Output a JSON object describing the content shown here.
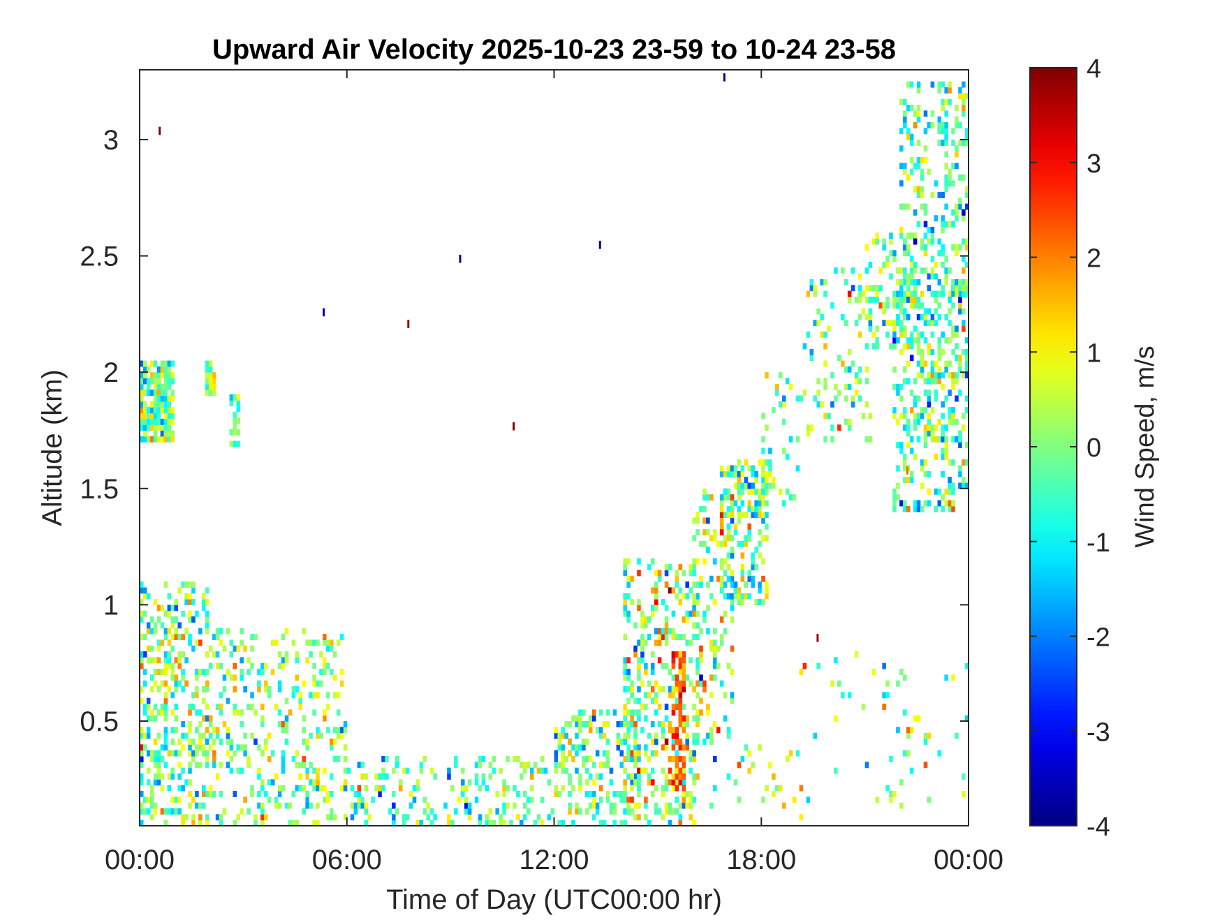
{
  "chart_data": {
    "type": "heatmap",
    "title": "Upward Air Velocity 2025-10-23 23-59 to 10-24 23-58",
    "xlabel": "Time of Day (UTC00:00 hr)",
    "ylabel": "Altitude (km)",
    "xlim_hours": [
      0,
      24
    ],
    "ylim_km": [
      0.05,
      3.3
    ],
    "x_ticks": [
      {
        "hour": 0,
        "label": "00:00"
      },
      {
        "hour": 6,
        "label": "06:00"
      },
      {
        "hour": 12,
        "label": "12:00"
      },
      {
        "hour": 18,
        "label": "18:00"
      },
      {
        "hour": 24,
        "label": "00:00"
      }
    ],
    "y_ticks": [
      {
        "value": 0.5,
        "label": "0.5"
      },
      {
        "value": 1.0,
        "label": "1"
      },
      {
        "value": 1.5,
        "label": "1.5"
      },
      {
        "value": 2.0,
        "label": "2"
      },
      {
        "value": 2.5,
        "label": "2.5"
      },
      {
        "value": 3.0,
        "label": "3"
      }
    ],
    "grid": false,
    "colorbar": {
      "label": "Wind Speed, m/s",
      "colormap": "jet",
      "clim": [
        -4,
        4
      ],
      "ticks": [
        {
          "value": 4,
          "label": "4"
        },
        {
          "value": 3,
          "label": "3"
        },
        {
          "value": 2,
          "label": "2"
        },
        {
          "value": 1,
          "label": "1"
        },
        {
          "value": 0,
          "label": "0"
        },
        {
          "value": -1,
          "label": "-1"
        },
        {
          "value": -2,
          "label": "-2"
        },
        {
          "value": -3,
          "label": "-3"
        },
        {
          "value": -4,
          "label": "-4"
        }
      ]
    },
    "regions": [
      {
        "t": [
          0.0,
          1.0
        ],
        "alt": [
          1.7,
          2.05
        ],
        "mean": 0.0,
        "spread": 1.2,
        "density": 0.85
      },
      {
        "t": [
          1.9,
          2.2
        ],
        "alt": [
          1.9,
          2.05
        ],
        "mean": 0.2,
        "spread": 1.0,
        "density": 0.8
      },
      {
        "t": [
          2.6,
          2.9
        ],
        "alt": [
          1.68,
          1.9
        ],
        "mean": 0.0,
        "spread": 1.0,
        "density": 0.6
      },
      {
        "t": [
          0.0,
          2.0
        ],
        "alt": [
          0.05,
          1.1
        ],
        "mean": 0.0,
        "spread": 1.3,
        "density": 0.35
      },
      {
        "t": [
          2.0,
          6.0
        ],
        "alt": [
          0.05,
          0.9
        ],
        "mean": 0.1,
        "spread": 1.2,
        "density": 0.22
      },
      {
        "t": [
          6.0,
          12.0
        ],
        "alt": [
          0.05,
          0.35
        ],
        "mean": -0.2,
        "spread": 1.2,
        "density": 0.22
      },
      {
        "t": [
          12.0,
          14.5
        ],
        "alt": [
          0.05,
          0.55
        ],
        "mean": -0.2,
        "spread": 1.3,
        "density": 0.35
      },
      {
        "t": [
          14.0,
          16.2
        ],
        "alt": [
          0.05,
          1.2
        ],
        "mean": 0.3,
        "spread": 1.5,
        "density": 0.3
      },
      {
        "t": [
          15.4,
          15.8
        ],
        "alt": [
          0.2,
          0.8
        ],
        "mean": 2.2,
        "spread": 0.8,
        "density": 0.6
      },
      {
        "t": [
          16.0,
          17.2
        ],
        "alt": [
          0.4,
          1.5
        ],
        "mean": 0.2,
        "spread": 1.4,
        "density": 0.25
      },
      {
        "t": [
          16.8,
          18.2
        ],
        "alt": [
          1.0,
          1.62
        ],
        "mean": 0.0,
        "spread": 1.5,
        "density": 0.4
      },
      {
        "t": [
          18.0,
          19.2
        ],
        "alt": [
          1.4,
          2.0
        ],
        "mean": -0.1,
        "spread": 1.2,
        "density": 0.15
      },
      {
        "t": [
          19.2,
          21.2
        ],
        "alt": [
          1.7,
          2.45
        ],
        "mean": 0.0,
        "spread": 1.2,
        "density": 0.18
      },
      {
        "t": [
          21.0,
          22.5
        ],
        "alt": [
          2.1,
          2.6
        ],
        "mean": -0.2,
        "spread": 1.2,
        "density": 0.25
      },
      {
        "t": [
          21.8,
          24.0
        ],
        "alt": [
          1.4,
          2.4
        ],
        "mean": -0.3,
        "spread": 1.2,
        "density": 0.35
      },
      {
        "t": [
          22.0,
          24.0
        ],
        "alt": [
          2.3,
          3.25
        ],
        "mean": -0.4,
        "spread": 1.2,
        "density": 0.3
      },
      {
        "t": [
          16.5,
          19.0
        ],
        "alt": [
          0.05,
          0.4
        ],
        "mean": 0.2,
        "spread": 1.3,
        "density": 0.06
      },
      {
        "t": [
          19.0,
          24.0
        ],
        "alt": [
          0.05,
          0.8
        ],
        "mean": 0.0,
        "spread": 1.3,
        "density": 0.04
      }
    ],
    "points": [
      {
        "t": 0.55,
        "alt": 3.03,
        "v": 4.0
      },
      {
        "t": 5.3,
        "alt": 2.25,
        "v": -3.8
      },
      {
        "t": 7.75,
        "alt": 2.2,
        "v": 3.8
      },
      {
        "t": 9.25,
        "alt": 2.48,
        "v": -3.8
      },
      {
        "t": 10.8,
        "alt": 1.76,
        "v": 4.0
      },
      {
        "t": 13.3,
        "alt": 2.54,
        "v": -3.8
      },
      {
        "t": 16.9,
        "alt": 3.26,
        "v": -3.8
      },
      {
        "t": 19.6,
        "alt": 0.85,
        "v": 3.8
      },
      {
        "t": 22.2,
        "alt": 1.57,
        "v": 2.2
      }
    ]
  }
}
